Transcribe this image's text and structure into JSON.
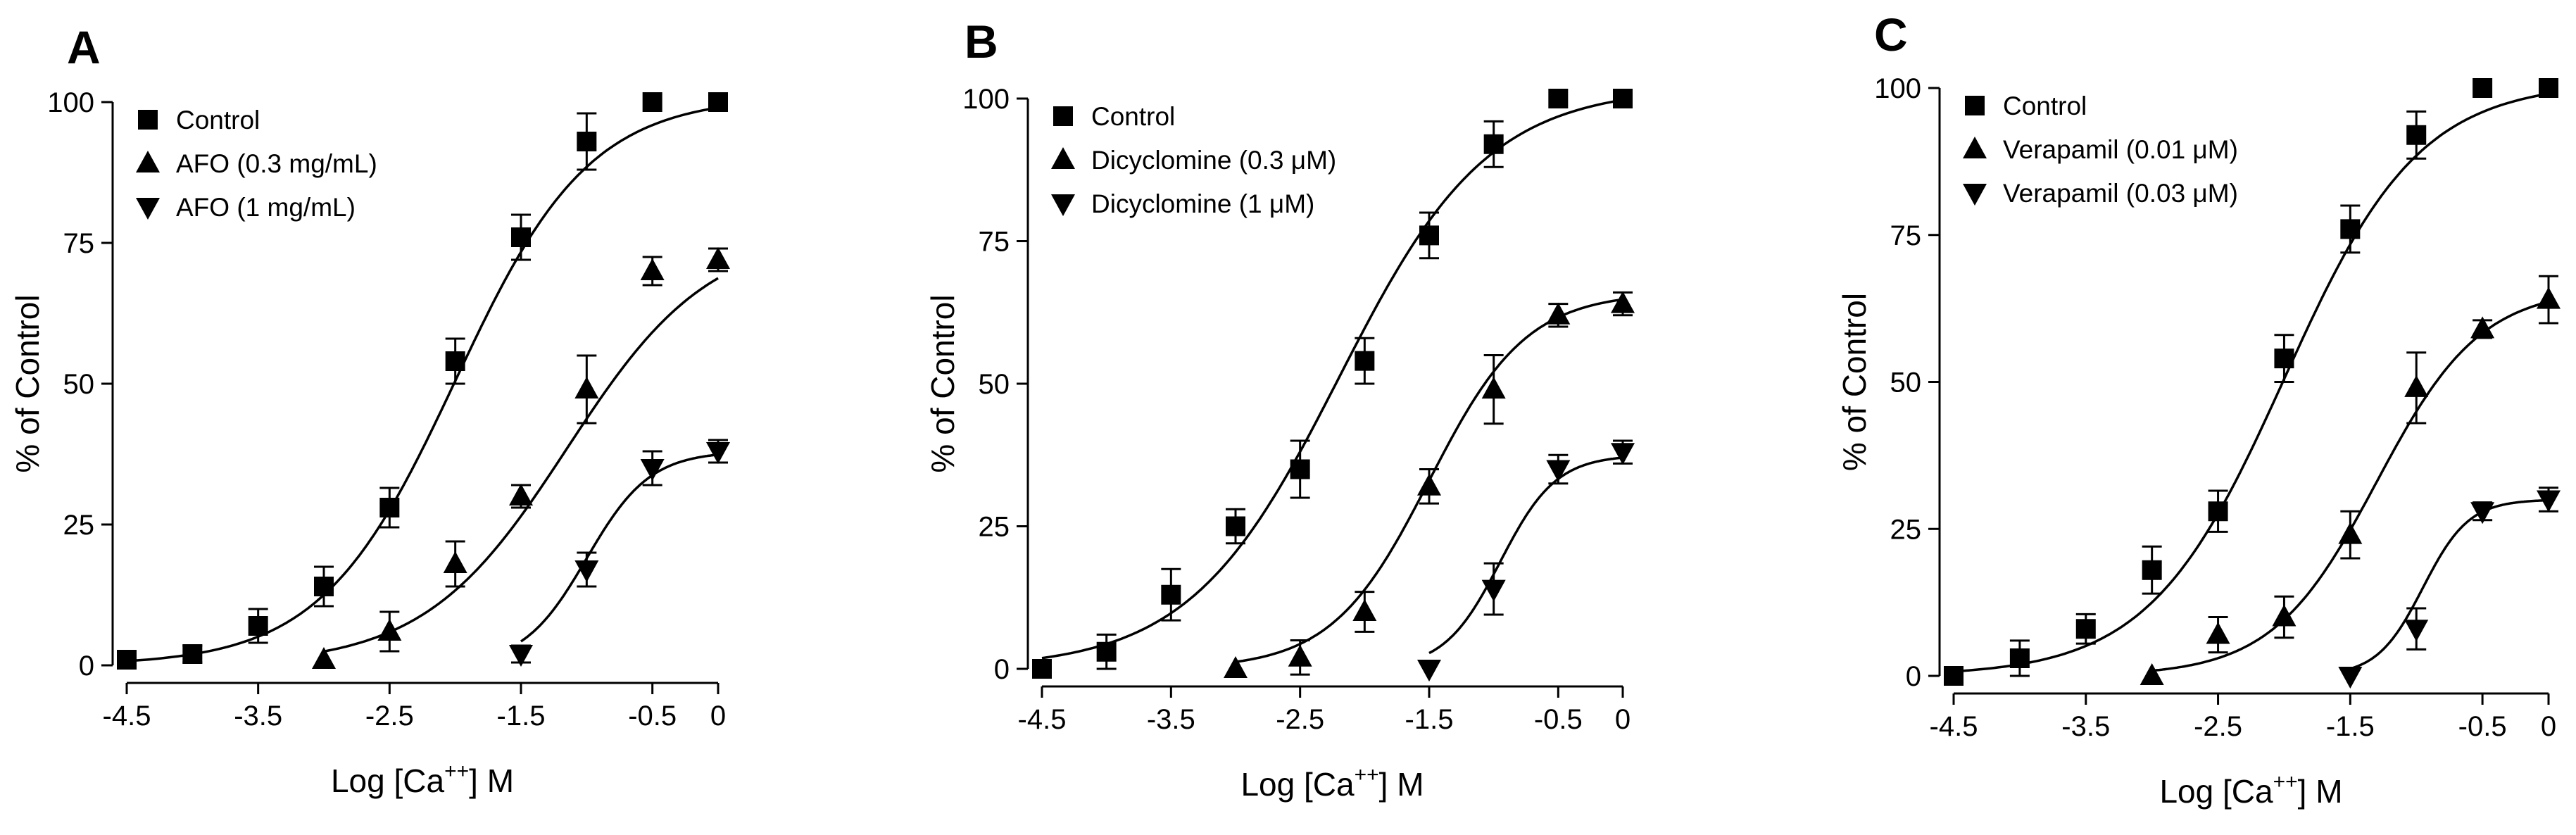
{
  "chart_data": [
    {
      "type": "scatter",
      "panel": "A",
      "title": "",
      "xlabel": "Log [Ca",
      "xlabel_sup": "++",
      "xlabel_suffix": "] M",
      "ylabel": "% of Control",
      "xlim": [
        -4.5,
        0
      ],
      "ylim": [
        0,
        100
      ],
      "xticks": [
        -4.5,
        -3.5,
        -2.5,
        -1.5,
        -0.5,
        0
      ],
      "yticks": [
        0,
        25,
        50,
        75,
        100
      ],
      "legend_position": "top-left",
      "series": [
        {
          "name": "Control",
          "marker": "square",
          "x": [
            -4.5,
            -4,
            -3.5,
            -3,
            -2.5,
            -2,
            -1.5,
            -1,
            -0.5,
            0
          ],
          "y": [
            1,
            2,
            7,
            14,
            28,
            54,
            76,
            93,
            100,
            100
          ],
          "err": [
            0,
            1.5,
            3,
            3.5,
            3.5,
            4,
            4,
            5,
            0,
            0
          ],
          "fit": {
            "bottom": 0,
            "top": 101,
            "logEC50": -2.0,
            "hill": 0.85
          }
        },
        {
          "name": "AFO (0.3 mg/mL)",
          "marker": "triangle-up",
          "x": [
            -3,
            -2.5,
            -2,
            -1.5,
            -1,
            -0.5,
            0
          ],
          "y": [
            1,
            6,
            18,
            30,
            49,
            70,
            72
          ],
          "err": [
            0,
            3.5,
            4,
            2,
            6,
            2.5,
            2
          ],
          "fit": {
            "bottom": 0,
            "top": 77,
            "logEC50": -1.15,
            "hill": 0.8
          }
        },
        {
          "name": "AFO (1 mg/mL)",
          "marker": "triangle-down",
          "x": [
            -1.5,
            -1,
            -0.5,
            0
          ],
          "y": [
            2,
            17,
            35,
            38
          ],
          "err": [
            1.5,
            3,
            3,
            2
          ],
          "fit": {
            "bottom": 0,
            "top": 38,
            "logEC50": -1.0,
            "hill": 1.8
          }
        }
      ]
    },
    {
      "type": "scatter",
      "panel": "B",
      "title": "",
      "xlabel": "Log [Ca",
      "xlabel_sup": "++",
      "xlabel_suffix": "] M",
      "ylabel": "% of Control",
      "xlim": [
        -4.5,
        0
      ],
      "ylim": [
        0,
        100
      ],
      "xticks": [
        -4.5,
        -3.5,
        -2.5,
        -1.5,
        -0.5,
        0
      ],
      "yticks": [
        0,
        25,
        50,
        75,
        100
      ],
      "legend_position": "top-left",
      "series": [
        {
          "name": "Control",
          "marker": "square",
          "x": [
            -4.5,
            -4,
            -3.5,
            -3,
            -2.5,
            -2,
            -1.5,
            -1,
            -0.5,
            0
          ],
          "y": [
            0,
            3,
            13,
            25,
            35,
            54,
            76,
            92,
            100,
            100
          ],
          "err": [
            0,
            3,
            4.5,
            3,
            5,
            4,
            4,
            4,
            0,
            0
          ],
          "fit": {
            "bottom": 0,
            "top": 102,
            "logEC50": -2.2,
            "hill": 0.75
          }
        },
        {
          "name": "Dicyclomine (0.3 μM)",
          "marker": "triangle-up",
          "x": [
            -3,
            -2.5,
            -2,
            -1.5,
            -1,
            -0.5,
            0
          ],
          "y": [
            0,
            2,
            10,
            32,
            49,
            62,
            64
          ],
          "err": [
            0,
            3,
            3.5,
            3,
            6,
            2,
            2
          ],
          "fit": {
            "bottom": 0,
            "top": 66,
            "logEC50": -1.5,
            "hill": 1.15
          }
        },
        {
          "name": "Dicyclomine (1 μM)",
          "marker": "triangle-down",
          "x": [
            -1.5,
            -1,
            -0.5,
            0
          ],
          "y": [
            0,
            14,
            35,
            38
          ],
          "err": [
            0,
            4.5,
            2.5,
            2
          ],
          "fit": {
            "bottom": 0,
            "top": 37.5,
            "logEC50": -0.95,
            "hill": 2.0
          }
        }
      ]
    },
    {
      "type": "scatter",
      "panel": "C",
      "title": "",
      "xlabel": "Log [Ca",
      "xlabel_sup": "++",
      "xlabel_suffix": "] M",
      "ylabel": "% of Control",
      "xlim": [
        -4.5,
        0
      ],
      "ylim": [
        0,
        100
      ],
      "xticks": [
        -4.5,
        -3.5,
        -2.5,
        -1.5,
        -0.5,
        0
      ],
      "yticks": [
        0,
        25,
        50,
        75,
        100
      ],
      "legend_position": "top-left",
      "series": [
        {
          "name": "Control",
          "marker": "square",
          "x": [
            -4.5,
            -4,
            -3.5,
            -3,
            -2.5,
            -2,
            -1.5,
            -1,
            -0.5,
            0
          ],
          "y": [
            0,
            3,
            8,
            18,
            28,
            54,
            76,
            92,
            100,
            100
          ],
          "err": [
            0,
            3,
            2.5,
            4,
            3.5,
            4,
            4,
            4,
            0,
            0
          ],
          "fit": {
            "bottom": 0,
            "top": 101,
            "logEC50": -2.0,
            "hill": 0.85
          }
        },
        {
          "name": "Verapamil (0.01 μM)",
          "marker": "triangle-up",
          "x": [
            -3,
            -2.5,
            -2,
            -1.5,
            -1,
            -0.5,
            0
          ],
          "y": [
            0,
            7,
            10,
            24,
            49,
            59,
            64
          ],
          "err": [
            0,
            3,
            3.5,
            4,
            6,
            1.5,
            4
          ],
          "fit": {
            "bottom": 0,
            "top": 66,
            "logEC50": -1.3,
            "hill": 1.1
          }
        },
        {
          "name": "Verapamil (0.03 μM)",
          "marker": "triangle-down",
          "x": [
            -1.5,
            -1,
            -0.5,
            0
          ],
          "y": [
            0,
            8,
            28,
            30
          ],
          "err": [
            0,
            3.5,
            1.5,
            2
          ],
          "fit": {
            "bottom": 0,
            "top": 30,
            "logEC50": -0.95,
            "hill": 2.5
          }
        }
      ]
    }
  ]
}
